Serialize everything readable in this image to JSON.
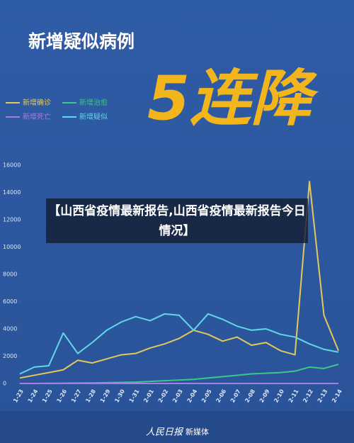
{
  "chart_data": {
    "type": "line",
    "title": "新增疑似病例",
    "headline": "5连降",
    "categories": [
      "1-23",
      "1-24",
      "1-25",
      "1-26",
      "1-27",
      "1-28",
      "1-29",
      "1-30",
      "1-31",
      "2-01",
      "2-02",
      "2-03",
      "2-04",
      "2-05",
      "2-06",
      "2-07",
      "2-08",
      "2-09",
      "2-10",
      "2-11",
      "2-12",
      "2-13",
      "2-14"
    ],
    "series": [
      {
        "name": "新增确诊",
        "color": "#e6c75a",
        "values": [
          400,
          600,
          800,
          1000,
          1700,
          1500,
          1800,
          2100,
          2200,
          2600,
          2900,
          3300,
          3900,
          3600,
          3100,
          3400,
          2800,
          3000,
          2400,
          2100,
          14800,
          5000,
          2400
        ]
      },
      {
        "name": "新增治愈",
        "color": "#3cc88a",
        "values": [
          0,
          0,
          10,
          20,
          30,
          40,
          60,
          80,
          100,
          150,
          200,
          250,
          300,
          400,
          500,
          600,
          700,
          750,
          800,
          900,
          1200,
          1100,
          1400
        ]
      },
      {
        "name": "新增死亡",
        "color": "#a57fe0",
        "values": [
          0,
          0,
          0,
          0,
          0,
          0,
          0,
          0,
          0,
          0,
          0,
          0,
          0,
          0,
          0,
          0,
          0,
          0,
          0,
          0,
          0,
          0,
          0
        ]
      },
      {
        "name": "新增疑似",
        "color": "#5fd8e8",
        "values": [
          700,
          1200,
          1300,
          3700,
          2200,
          3000,
          3900,
          4500,
          4900,
          4600,
          5100,
          5000,
          3900,
          5100,
          4700,
          4200,
          3900,
          4000,
          3600,
          3400,
          2900,
          2500,
          2300
        ]
      }
    ],
    "ylim": [
      0,
      16000
    ],
    "yticks": [
      0,
      2000,
      4000,
      6000,
      8000,
      10000,
      12000,
      14000,
      16000
    ]
  },
  "overlay_caption": "【山西省疫情最新报告,山西省疫情最新报告今日情况】",
  "footer": {
    "logo": "人民日报",
    "text": "新媒体"
  }
}
